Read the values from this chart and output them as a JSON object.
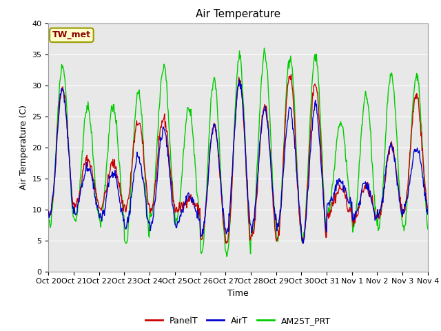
{
  "title": "Air Temperature",
  "ylabel": "Air Temperature (C)",
  "xlabel": "Time",
  "annotation": "TW_met",
  "ylim": [
    0,
    40
  ],
  "bg_color": "#e8e8e8",
  "fig_color": "#ffffff",
  "grid_color": "#ffffff",
  "series": {
    "PanelT": {
      "color": "#cc0000"
    },
    "AirT": {
      "color": "#0000cc"
    },
    "AM25T_PRT": {
      "color": "#00cc00"
    }
  },
  "xtick_labels": [
    "Oct 20",
    "Oct 21",
    "Oct 22",
    "Oct 23",
    "Oct 24",
    "Oct 25",
    "Oct 26",
    "Oct 27",
    "Oct 28",
    "Oct 29",
    "Oct 30",
    "Oct 31",
    "Nov 1",
    "Nov 2",
    "Nov 3",
    "Nov 4"
  ],
  "ytick_positions": [
    0,
    5,
    10,
    15,
    20,
    25,
    30,
    35,
    40
  ],
  "title_fontsize": 11,
  "axis_fontsize": 9,
  "tick_fontsize": 8,
  "legend_fontsize": 9,
  "linewidth": 1.0
}
